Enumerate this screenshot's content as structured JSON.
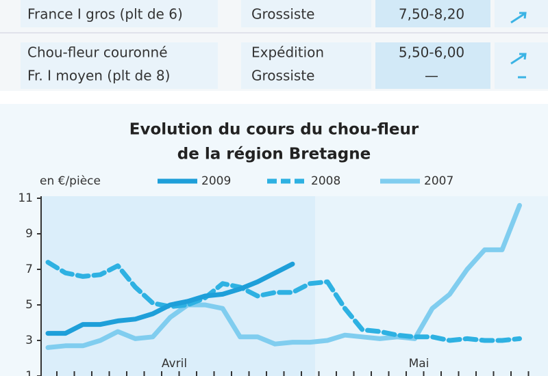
{
  "table": {
    "rows": [
      {
        "product": [
          "France I gros (plt de 6)"
        ],
        "market": [
          "Grossiste"
        ],
        "price": [
          "7,50-8,20"
        ]
      },
      {
        "product": [
          "Chou-fleur couronné",
          "Fr. I moyen (plt de 8)"
        ],
        "market": [
          "Expédition",
          "Grossiste"
        ],
        "price": [
          "5,50-6,00",
          "—"
        ]
      }
    ]
  },
  "chart_data": {
    "type": "line",
    "title": [
      "Evolution du cours du chou-fleur",
      "de la région Bretagne"
    ],
    "y_label": "en €/pièce",
    "categories": [
      null,
      null,
      null,
      null,
      null,
      null,
      null,
      "Avril",
      null,
      null,
      null,
      null,
      null,
      null,
      null,
      null,
      null,
      null,
      null,
      null,
      null,
      "Mai",
      null,
      null,
      null,
      null,
      null,
      null
    ],
    "series": [
      {
        "name": "2009",
        "color": "#1e9fd9",
        "dash": false,
        "values": [
          3.4,
          3.4,
          3.9,
          3.9,
          4.1,
          4.2,
          4.5,
          5.0,
          5.2,
          5.5,
          5.6,
          5.9,
          6.3,
          6.8,
          7.3,
          null,
          null,
          null,
          null,
          null,
          null,
          null,
          null,
          null,
          null,
          null,
          null,
          null
        ]
      },
      {
        "name": "2008",
        "color": "#2eb1e2",
        "dash": true,
        "values": [
          7.4,
          6.8,
          6.6,
          6.7,
          7.2,
          6.0,
          5.1,
          4.9,
          5.0,
          5.4,
          6.2,
          6.0,
          5.5,
          5.7,
          5.7,
          6.2,
          6.3,
          4.8,
          3.6,
          3.5,
          3.3,
          3.2,
          3.2,
          3.0,
          3.1,
          3.0,
          3.0,
          3.1
        ]
      },
      {
        "name": "2007",
        "color": "#80cdef",
        "dash": false,
        "values": [
          2.6,
          2.7,
          2.7,
          3.0,
          3.5,
          3.1,
          3.2,
          4.3,
          5.0,
          5.0,
          4.8,
          3.2,
          3.2,
          2.8,
          2.9,
          2.9,
          3.0,
          3.3,
          3.2,
          3.1,
          3.2,
          3.1,
          4.8,
          5.6,
          7.0,
          8.1,
          8.1,
          10.6
        ]
      }
    ],
    "ylim": [
      1,
      11
    ],
    "yticks": [
      1,
      3,
      5,
      7,
      9,
      11
    ]
  }
}
